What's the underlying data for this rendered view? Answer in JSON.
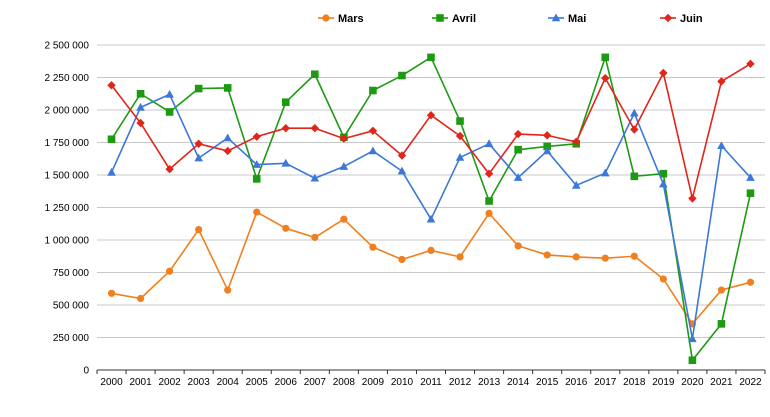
{
  "chart_data": {
    "type": "line",
    "title": "",
    "xlabel": "",
    "ylabel": "",
    "ylim": [
      0,
      2500000
    ],
    "yticks": [
      0,
      250000,
      500000,
      750000,
      1000000,
      1250000,
      1500000,
      1750000,
      2000000,
      2250000,
      2500000
    ],
    "ytick_labels": [
      "0",
      "250 000",
      "500 000",
      "750 000",
      "1 000 000",
      "1 250 000",
      "1 500 000",
      "1 750 000",
      "2 000 000",
      "2 250 000",
      "2 500 000"
    ],
    "grid": true,
    "legend_position": "top",
    "categories": [
      "2000",
      "2001",
      "2002",
      "2003",
      "2004",
      "2005",
      "2006",
      "2007",
      "2008",
      "2009",
      "2010",
      "2011",
      "2012",
      "2013",
      "2014",
      "2015",
      "2016",
      "2017",
      "2018",
      "2019",
      "2020",
      "2021",
      "2022"
    ],
    "series": [
      {
        "name": "Mars",
        "color": "#f07f1d",
        "marker": "circle",
        "values": [
          590000,
          550000,
          760000,
          1080000,
          615000,
          1215000,
          1090000,
          1020000,
          1160000,
          945000,
          850000,
          920000,
          870000,
          1205000,
          955000,
          885000,
          870000,
          860000,
          875000,
          700000,
          355000,
          615000,
          675000
        ]
      },
      {
        "name": "Avril",
        "color": "#1e9a12",
        "marker": "square",
        "values": [
          1775000,
          2125000,
          1985000,
          2165000,
          2170000,
          1470000,
          2060000,
          2275000,
          1790000,
          2150000,
          2265000,
          2405000,
          1915000,
          1300000,
          1695000,
          1720000,
          1740000,
          2405000,
          1490000,
          1510000,
          75000,
          355000,
          1360000
        ]
      },
      {
        "name": "Mai",
        "color": "#3c78d8",
        "marker": "triangle",
        "values": [
          1520000,
          2020000,
          2120000,
          1630000,
          1785000,
          1580000,
          1590000,
          1475000,
          1565000,
          1685000,
          1530000,
          1160000,
          1635000,
          1740000,
          1480000,
          1685000,
          1420000,
          1515000,
          1975000,
          1430000,
          240000,
          1725000,
          1480000
        ]
      },
      {
        "name": "Juin",
        "color": "#e0251b",
        "marker": "diamond",
        "values": [
          2190000,
          1900000,
          1545000,
          1740000,
          1685000,
          1795000,
          1860000,
          1860000,
          1780000,
          1840000,
          1650000,
          1960000,
          1800000,
          1510000,
          1815000,
          1805000,
          1755000,
          2245000,
          1850000,
          2285000,
          1320000,
          2220000,
          2355000
        ]
      }
    ]
  }
}
